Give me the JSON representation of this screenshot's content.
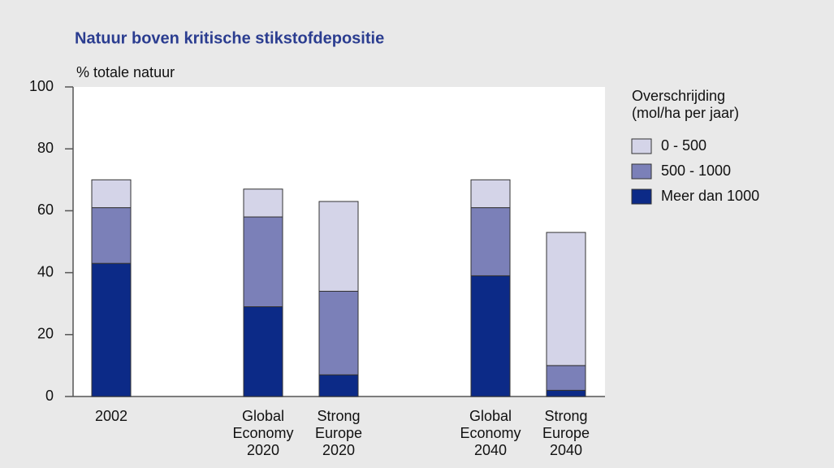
{
  "chart_data": {
    "type": "stacked_bar",
    "title": "Natuur boven kritische stikstofdepositie",
    "y_label": "% totale natuur",
    "legend_title": "Overschrijding\n(mol/ha per jaar)",
    "categories": [
      "2002",
      "Global\nEconomy\n2020",
      "Strong\nEurope\n2020",
      "Global\nEconomy\n2040",
      "Strong\nEurope\n2040"
    ],
    "series": [
      {
        "name": "Meer dan 1000",
        "color": "#0c2a87",
        "values": [
          43,
          29,
          7,
          39,
          2
        ]
      },
      {
        "name": "500 - 1000",
        "color": "#7b80b8",
        "values": [
          18,
          29,
          27,
          22,
          8
        ]
      },
      {
        "name": "0 - 500",
        "color": "#d4d4e8",
        "values": [
          9,
          9,
          29,
          9,
          43
        ]
      }
    ],
    "ylim": [
      0,
      100
    ],
    "yticks": [
      0,
      20,
      40,
      60,
      80,
      100
    ]
  }
}
